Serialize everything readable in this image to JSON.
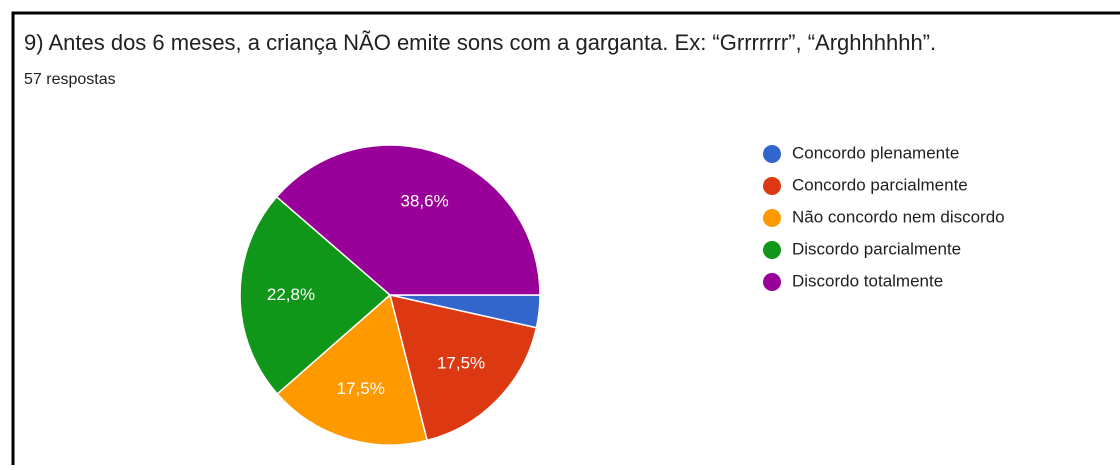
{
  "chart_data": {
    "type": "pie",
    "title": "9) Antes dos 6 meses, a criança NÃO emite sons com a garganta. Ex: “Grrrrrrr”, “Arghhhhhh”.",
    "subtitle": "57 respostas",
    "categories": [
      "Concordo plenamente",
      "Concordo parcialmente",
      "Não concordo nem discordo",
      "Discordo parcialmente",
      "Discordo totalmente"
    ],
    "values": [
      3.5,
      17.5,
      17.5,
      22.8,
      38.6
    ],
    "value_labels": [
      null,
      "17,5%",
      "17,5%",
      "22,8%",
      "38,6%"
    ],
    "colors": [
      "#3366cc",
      "#dc3912",
      "#ff9900",
      "#109618",
      "#990099"
    ],
    "legend": "right"
  }
}
